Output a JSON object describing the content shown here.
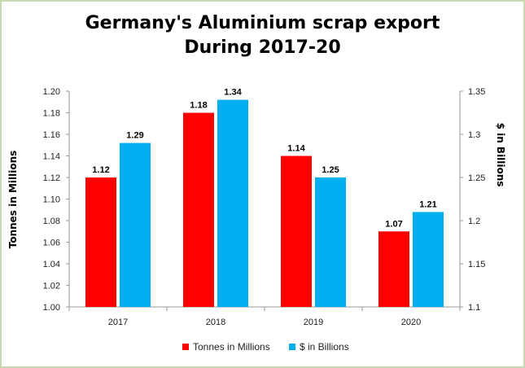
{
  "chart_data": {
    "type": "bar",
    "title_line1": "Germany's Aluminium scrap export",
    "title_line2": "During 2017-20",
    "categories": [
      "2017",
      "2018",
      "2019",
      "2020"
    ],
    "series": [
      {
        "name": "Tonnes in Millions",
        "axis": "left",
        "color": "#ff0000",
        "values": [
          1.12,
          1.18,
          1.14,
          1.07
        ],
        "labels": [
          "1.12",
          "1.18",
          "1.14",
          "1.07"
        ]
      },
      {
        "name": "$ in Billions",
        "axis": "right",
        "color": "#00b0f0",
        "values": [
          1.29,
          1.34,
          1.25,
          1.21
        ],
        "labels": [
          "1.29",
          "1.34",
          "1.25",
          "1.21"
        ]
      }
    ],
    "y_left": {
      "label": "Tonnes in Millions",
      "ylim": [
        1.0,
        1.2
      ],
      "ticks": [
        "1.00",
        "1.02",
        "1.04",
        "1.06",
        "1.08",
        "1.10",
        "1.12",
        "1.14",
        "1.16",
        "1.18",
        "1.20"
      ]
    },
    "y_right": {
      "label": "$ in Billions",
      "ylim": [
        1.1,
        1.35
      ],
      "ticks": [
        "1.1",
        "1.15",
        "1.2",
        "1.25",
        "1.3",
        "1.35"
      ]
    },
    "legend_position": "bottom",
    "grid": false
  }
}
